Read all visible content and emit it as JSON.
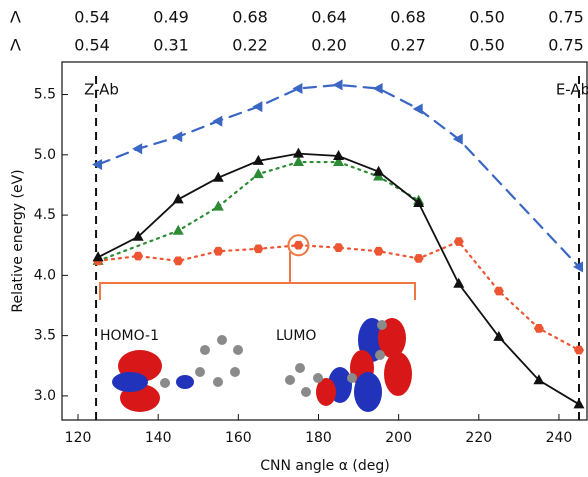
{
  "chart_data": {
    "type": "line",
    "xlabel": "CNN angle α (deg)",
    "ylabel": "Relative energy (eV)",
    "xlim": [
      116,
      247
    ],
    "ylim": [
      2.8,
      5.77
    ],
    "xticks": [
      120,
      140,
      160,
      180,
      200,
      220,
      240
    ],
    "yticks": [
      {
        "value": 3,
        "label": "3.0"
      },
      3.5,
      {
        "value": 4,
        "label": "4.0"
      },
      4.5,
      {
        "value": 5,
        "label": "5.0"
      },
      5.5
    ],
    "series": [
      {
        "color": "#3a66c4",
        "dash": "12 8",
        "marker": "triangle-left",
        "x": [
          125,
          135,
          145,
          155,
          165,
          175,
          185,
          195,
          205,
          215,
          245
        ],
        "values": [
          4.92,
          5.05,
          5.15,
          5.28,
          5.4,
          5.55,
          5.58,
          5.55,
          5.38,
          5.13,
          4.07
        ]
      },
      {
        "color": "#2e8b35",
        "dash": "2 5",
        "marker": "triangle-up",
        "x": [
          125,
          145,
          155,
          165,
          175,
          185,
          195,
          205
        ],
        "values": [
          4.12,
          4.37,
          4.57,
          4.84,
          4.94,
          4.94,
          4.82,
          4.62
        ]
      },
      {
        "color": "#ee5533",
        "dash": "2 5",
        "marker": "hexagon",
        "x": [
          125,
          135,
          145,
          155,
          165,
          175,
          185,
          195,
          205,
          215,
          225,
          235,
          245
        ],
        "values": [
          4.12,
          4.16,
          4.12,
          4.2,
          4.22,
          4.25,
          4.23,
          4.2,
          4.14,
          4.28,
          3.87,
          3.56,
          3.38
        ]
      },
      {
        "color": "#111111",
        "dash": "none",
        "marker": "triangle-up",
        "x": [
          125,
          135,
          145,
          155,
          165,
          175,
          185,
          195,
          205,
          215,
          225,
          235,
          245
        ],
        "values": [
          4.15,
          4.32,
          4.63,
          4.81,
          4.95,
          5.01,
          4.99,
          4.86,
          4.6,
          3.93,
          3.49,
          3.13,
          2.93
        ]
      }
    ],
    "vlines": [
      {
        "x": 124.5,
        "label": "Z-Ab"
      },
      {
        "x": 245,
        "label": "E-Ab"
      }
    ],
    "lambda_rows": [
      {
        "symbol": "Λ",
        "color": "#2e8b35",
        "values": [
          0.54,
          0.49,
          0.68,
          0.64,
          0.68,
          0.5,
          0.75
        ],
        "value_labels": [
          "0.54",
          "0.49",
          "0.68",
          "0.64",
          "0.68",
          "0.50",
          "0.75"
        ]
      },
      {
        "symbol": "Λ",
        "color": "#ee5533",
        "values": [
          0.54,
          0.31,
          0.22,
          0.2,
          0.27,
          0.5,
          0.75
        ],
        "value_labels": [
          "0.54",
          "0.31",
          "0.22",
          "0.20",
          "0.27",
          "0.50",
          "0.75"
        ]
      }
    ],
    "inset_labels": [
      "HOMO-1",
      "LUMO"
    ]
  }
}
